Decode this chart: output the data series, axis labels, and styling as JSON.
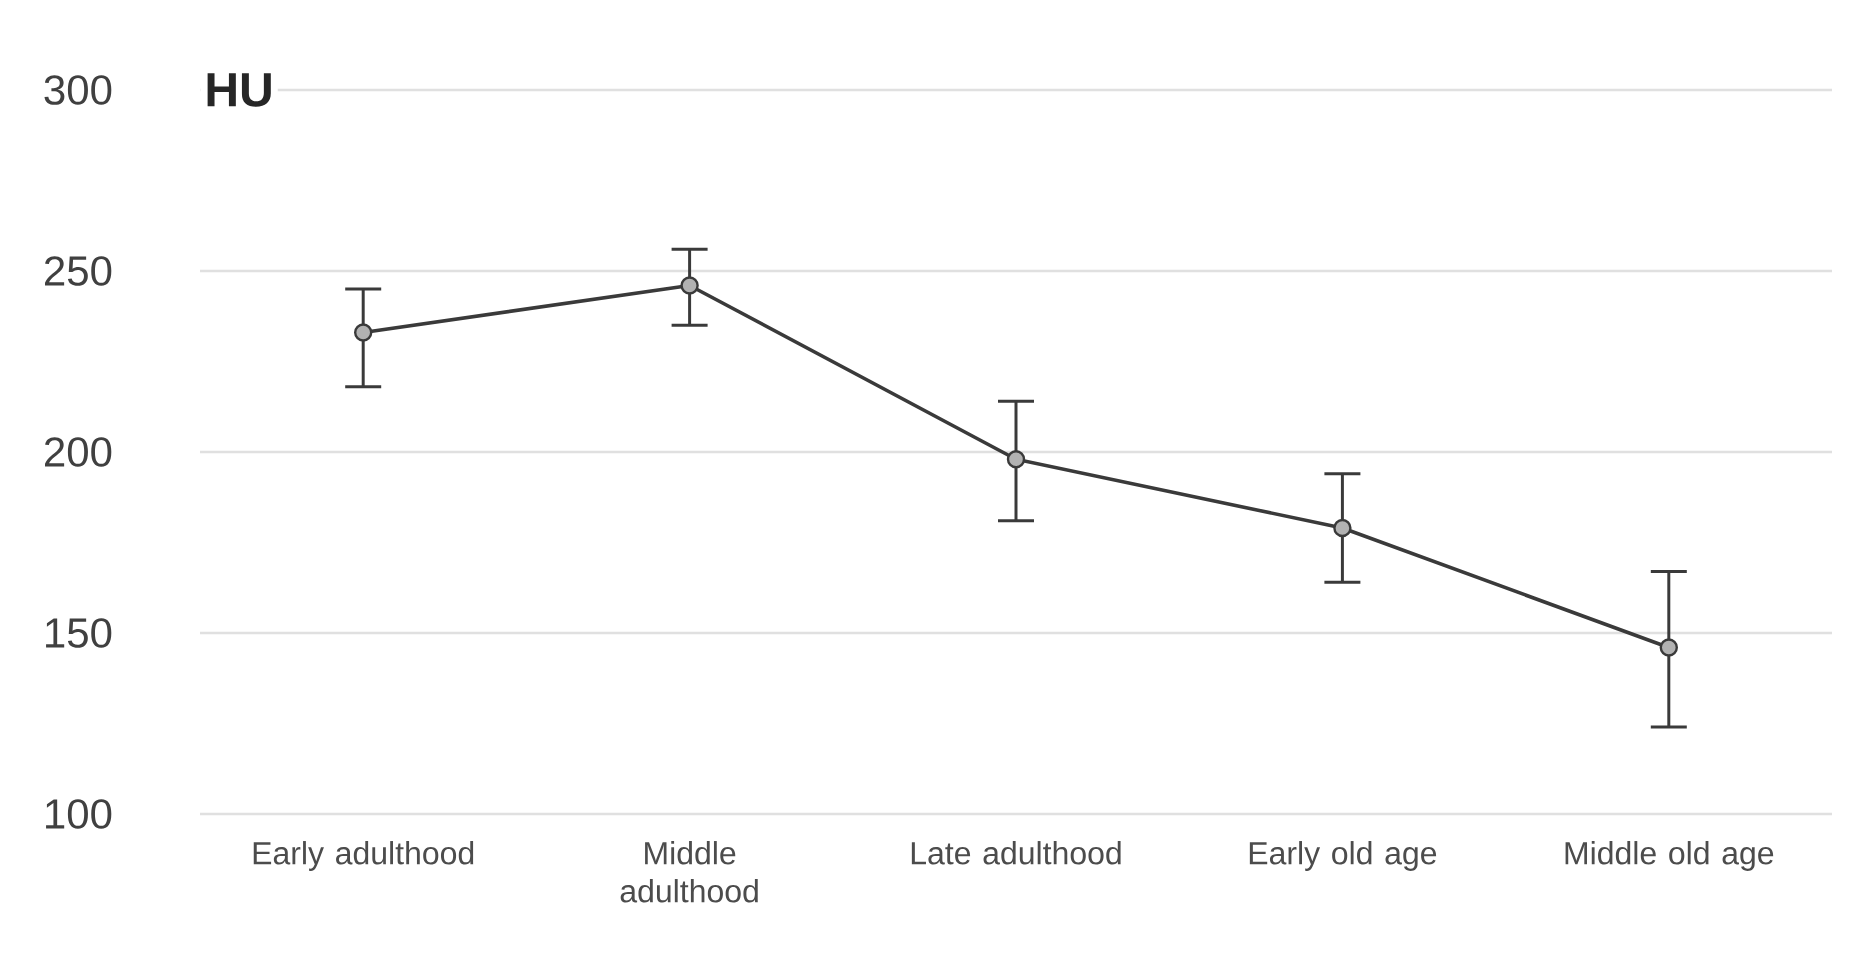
{
  "chart_data": {
    "type": "line",
    "ylabel": "HU",
    "categories": [
      "Early adulthood",
      "Middle adulthood",
      "Late adulthood",
      "Early old age",
      "Middle old age"
    ],
    "values": [
      233,
      246,
      198,
      179,
      146
    ],
    "errors": [
      [
        218,
        245
      ],
      [
        235,
        256
      ],
      [
        181,
        214
      ],
      [
        164,
        194
      ],
      [
        124,
        167
      ]
    ],
    "color": "#3a3a3a",
    "marker": "circle",
    "line_style": "solid",
    "ylim": [
      100,
      300
    ],
    "yticks": [
      100,
      150,
      200,
      250,
      300
    ],
    "grid": "y"
  }
}
